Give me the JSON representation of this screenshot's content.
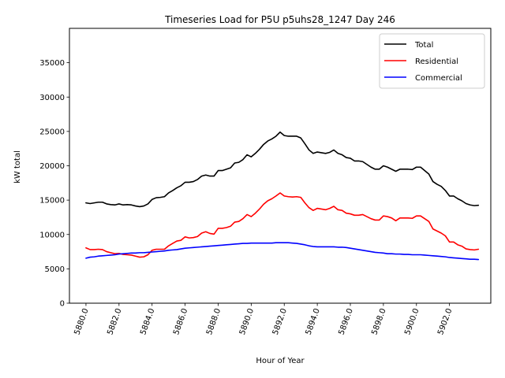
{
  "chart_data": {
    "type": "line",
    "title": "Timeseries Load for P5U p5uhs28_1247  Day 246",
    "xlabel": "Hour of Year",
    "ylabel": "kW total",
    "xlim": [
      5879.0,
      5904.5
    ],
    "ylim": [
      0,
      40000
    ],
    "xticks": [
      5880.0,
      5882.0,
      5884.0,
      5886.0,
      5888.0,
      5890.0,
      5892.0,
      5894.0,
      5896.0,
      5898.0,
      5900.0,
      5902.0
    ],
    "xtick_labels": [
      "5880.0",
      "5882.0",
      "5884.0",
      "5886.0",
      "5888.0",
      "5890.0",
      "5892.0",
      "5894.0",
      "5896.0",
      "5898.0",
      "5900.0",
      "5902.0"
    ],
    "yticks": [
      0,
      5000,
      10000,
      15000,
      20000,
      25000,
      30000,
      35000
    ],
    "ytick_labels": [
      "0",
      "5000",
      "10000",
      "15000",
      "20000",
      "25000",
      "30000",
      "35000"
    ],
    "grid": false,
    "legend_position": "top-right",
    "x": [
      5880.0,
      5880.25,
      5880.5,
      5880.75,
      5881.0,
      5881.25,
      5881.5,
      5881.75,
      5882.0,
      5882.25,
      5882.5,
      5882.75,
      5883.0,
      5883.25,
      5883.5,
      5883.75,
      5884.0,
      5884.25,
      5884.5,
      5884.75,
      5885.0,
      5885.25,
      5885.5,
      5885.75,
      5886.0,
      5886.25,
      5886.5,
      5886.75,
      5887.0,
      5887.25,
      5887.5,
      5887.75,
      5888.0,
      5888.25,
      5888.5,
      5888.75,
      5889.0,
      5889.25,
      5889.5,
      5889.75,
      5890.0,
      5890.25,
      5890.5,
      5890.75,
      5891.0,
      5891.25,
      5891.5,
      5891.75,
      5892.0,
      5892.25,
      5892.5,
      5892.75,
      5893.0,
      5893.25,
      5893.5,
      5893.75,
      5894.0,
      5894.25,
      5894.5,
      5894.75,
      5895.0,
      5895.25,
      5895.5,
      5895.75,
      5896.0,
      5896.25,
      5896.5,
      5896.75,
      5897.0,
      5897.25,
      5897.5,
      5897.75,
      5898.0,
      5898.25,
      5898.5,
      5898.75,
      5899.0,
      5899.25,
      5899.5,
      5899.75,
      5900.0,
      5900.25,
      5900.5,
      5900.75,
      5901.0,
      5901.25,
      5901.5,
      5901.75,
      5902.0,
      5902.25,
      5902.5,
      5902.75,
      5903.0,
      5903.25,
      5903.5,
      5903.75
    ],
    "series": [
      {
        "name": "Total",
        "color": "#000000",
        "values": [
          14600,
          14500,
          14600,
          14700,
          14700,
          14450,
          14350,
          14300,
          14450,
          14300,
          14350,
          14300,
          14150,
          14050,
          14150,
          14450,
          15100,
          15350,
          15400,
          15500,
          16050,
          16400,
          16800,
          17100,
          17600,
          17600,
          17700,
          18000,
          18500,
          18650,
          18500,
          18500,
          19300,
          19300,
          19500,
          19700,
          20400,
          20500,
          20900,
          21600,
          21300,
          21800,
          22400,
          23100,
          23600,
          23900,
          24300,
          24900,
          24400,
          24300,
          24300,
          24300,
          24050,
          23200,
          22300,
          21800,
          22000,
          21900,
          21800,
          21950,
          22300,
          21800,
          21600,
          21200,
          21100,
          20700,
          20700,
          20600,
          20200,
          19800,
          19500,
          19500,
          20000,
          19800,
          19500,
          19200,
          19500,
          19500,
          19500,
          19450,
          19800,
          19800,
          19300,
          18800,
          17700,
          17300,
          17000,
          16400,
          15600,
          15600,
          15200,
          14900,
          14500,
          14300,
          14200,
          14250
        ]
      },
      {
        "name": "Residential",
        "color": "#ff0000",
        "values": [
          8050,
          7800,
          7800,
          7850,
          7800,
          7500,
          7350,
          7200,
          7250,
          7100,
          7050,
          7000,
          6850,
          6700,
          6750,
          7050,
          7700,
          7850,
          7850,
          7850,
          8350,
          8700,
          9050,
          9150,
          9650,
          9500,
          9550,
          9700,
          10200,
          10400,
          10150,
          10050,
          10900,
          10900,
          11000,
          11200,
          11800,
          11900,
          12300,
          12900,
          12600,
          13100,
          13700,
          14400,
          14900,
          15200,
          15600,
          16050,
          15600,
          15500,
          15450,
          15500,
          15400,
          14600,
          13900,
          13500,
          13800,
          13700,
          13600,
          13800,
          14100,
          13600,
          13500,
          13100,
          13000,
          12800,
          12800,
          12900,
          12600,
          12300,
          12100,
          12100,
          12700,
          12600,
          12400,
          12000,
          12400,
          12400,
          12400,
          12350,
          12700,
          12700,
          12300,
          11900,
          10800,
          10500,
          10200,
          9800,
          8900,
          8900,
          8500,
          8300,
          7900,
          7800,
          7750,
          7850
        ]
      },
      {
        "name": "Commercial",
        "color": "#0000ff",
        "values": [
          6550,
          6700,
          6750,
          6850,
          6900,
          6950,
          7000,
          7050,
          7150,
          7200,
          7250,
          7300,
          7300,
          7350,
          7350,
          7400,
          7450,
          7500,
          7550,
          7600,
          7700,
          7750,
          7800,
          7900,
          8000,
          8050,
          8100,
          8150,
          8200,
          8250,
          8300,
          8350,
          8400,
          8450,
          8500,
          8550,
          8600,
          8650,
          8700,
          8700,
          8750,
          8750,
          8750,
          8750,
          8750,
          8750,
          8800,
          8800,
          8800,
          8800,
          8750,
          8700,
          8600,
          8500,
          8350,
          8250,
          8200,
          8200,
          8200,
          8200,
          8200,
          8150,
          8150,
          8100,
          8000,
          7900,
          7800,
          7700,
          7600,
          7500,
          7400,
          7350,
          7300,
          7200,
          7200,
          7150,
          7150,
          7100,
          7100,
          7050,
          7050,
          7050,
          7000,
          6950,
          6900,
          6850,
          6800,
          6750,
          6650,
          6600,
          6550,
          6500,
          6450,
          6400,
          6400,
          6350
        ]
      }
    ]
  }
}
